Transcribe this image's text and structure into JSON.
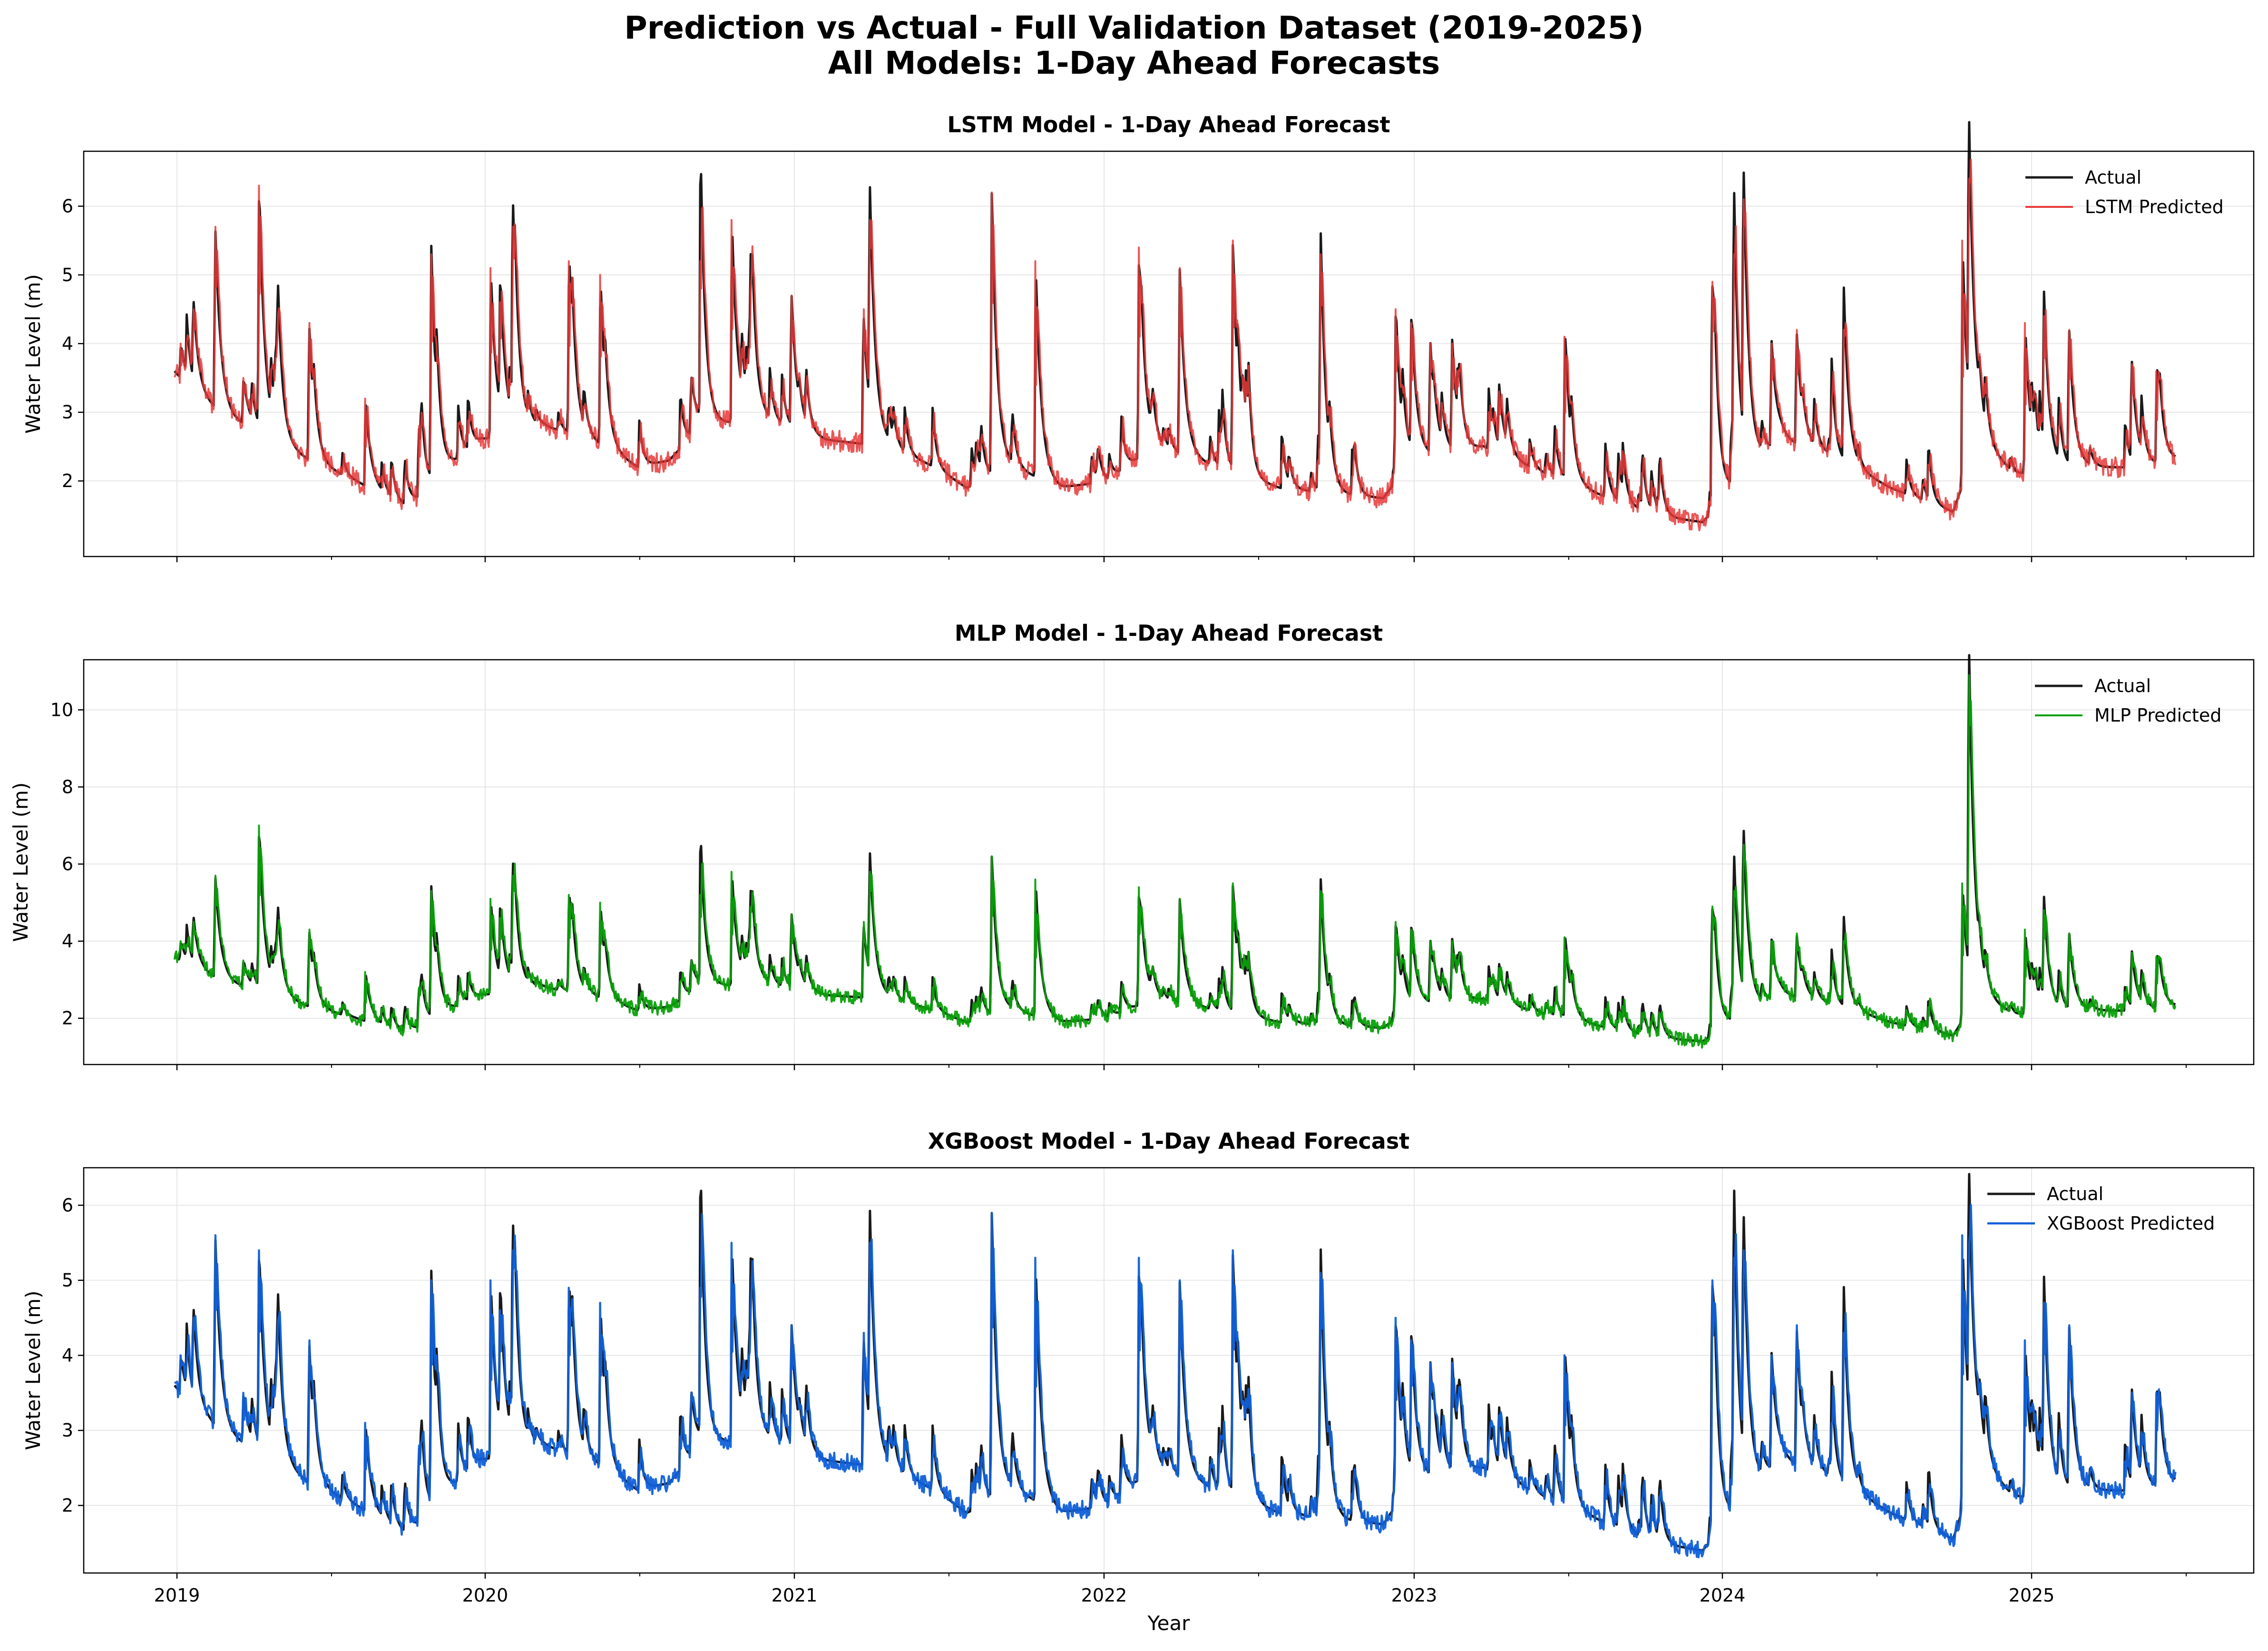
{
  "figure": {
    "title_line1": "Prediction vs Actual - Full Validation Dataset (2019-2025)",
    "title_line2": "All Models: 1-Day Ahead Forecasts",
    "xlabel": "Year"
  },
  "chart_data": [
    {
      "type": "line",
      "title": "LSTM Model - 1-Day Ahead Forecast",
      "ylabel": "Water Level (m)",
      "xlabel": "",
      "xlim": [
        2018.73,
        2025.66
      ],
      "ylim": [
        0.9,
        6.8
      ],
      "yticks": [
        2,
        3,
        4,
        5,
        6
      ],
      "xticks": [
        "2019",
        "2020",
        "2021",
        "2022",
        "2023",
        "2024",
        "2025"
      ],
      "grid": true,
      "legend_position": "top-right",
      "pred_jitter": 0.15,
      "series": [
        {
          "name": "Actual",
          "color": "#1a1a1a",
          "width": 5
        },
        {
          "name": "LSTM Predicted",
          "color": "#e83a3a",
          "width": 4,
          "opacity": 0.85
        }
      ],
      "baseline": [
        [
          2019.02,
          3.6
        ],
        [
          2019.1,
          3.2
        ],
        [
          2019.2,
          2.9
        ],
        [
          2019.3,
          2.7
        ],
        [
          2019.45,
          2.3
        ],
        [
          2019.6,
          2.0
        ],
        [
          2019.75,
          1.65
        ],
        [
          2019.82,
          1.8
        ],
        [
          2019.9,
          2.2
        ],
        [
          2020.0,
          2.6
        ],
        [
          2020.2,
          2.8
        ],
        [
          2020.35,
          2.6
        ],
        [
          2020.5,
          2.2
        ],
        [
          2020.6,
          2.3
        ],
        [
          2020.7,
          2.8
        ],
        [
          2020.9,
          2.9
        ],
        [
          2021.1,
          2.6
        ],
        [
          2021.3,
          2.5
        ],
        [
          2021.45,
          2.2
        ],
        [
          2021.55,
          1.9
        ],
        [
          2021.7,
          2.2
        ],
        [
          2021.85,
          1.9
        ],
        [
          2022.0,
          2.0
        ],
        [
          2022.15,
          2.5
        ],
        [
          2022.35,
          2.2
        ],
        [
          2022.55,
          1.9
        ],
        [
          2022.75,
          1.8
        ],
        [
          2022.88,
          1.75
        ],
        [
          2022.97,
          2.3
        ],
        [
          2023.2,
          2.5
        ],
        [
          2023.4,
          2.1
        ],
        [
          2023.6,
          1.75
        ],
        [
          2023.75,
          1.5
        ],
        [
          2023.9,
          1.4
        ],
        [
          2024.0,
          1.9
        ],
        [
          2024.15,
          2.6
        ],
        [
          2024.3,
          2.4
        ],
        [
          2024.5,
          1.9
        ],
        [
          2024.7,
          1.55
        ],
        [
          2024.78,
          2.6
        ],
        [
          2024.9,
          2.1
        ],
        [
          2025.1,
          2.2
        ],
        [
          2025.3,
          2.2
        ],
        [
          2025.41,
          2.3
        ]
      ],
      "peaks": [
        [
          2019.04,
          4.0
        ],
        [
          2019.08,
          4.5
        ],
        [
          2019.15,
          5.7
        ],
        [
          2019.24,
          3.5
        ],
        [
          2019.29,
          6.3
        ],
        [
          2019.35,
          4.0
        ],
        [
          2019.45,
          4.3
        ],
        [
          2019.63,
          3.2
        ],
        [
          2019.8,
          2.8
        ],
        [
          2019.84,
          5.3
        ],
        [
          2020.03,
          5.1
        ],
        [
          2020.06,
          4.6
        ],
        [
          2020.1,
          5.7
        ],
        [
          2020.28,
          5.2
        ],
        [
          2020.38,
          5.0
        ],
        [
          2020.67,
          3.5
        ],
        [
          2020.7,
          5.2
        ],
        [
          2020.8,
          5.8
        ],
        [
          2020.86,
          4.5
        ],
        [
          2020.99,
          4.7
        ],
        [
          2021.22,
          4.5
        ],
        [
          2021.24,
          5.8
        ],
        [
          2021.58,
          2.4
        ],
        [
          2021.63,
          6.2
        ],
        [
          2021.77,
          5.2
        ],
        [
          2022.1,
          5.4
        ],
        [
          2022.23,
          5.1
        ],
        [
          2022.4,
          5.5
        ],
        [
          2022.68,
          5.3
        ],
        [
          2022.92,
          4.5
        ],
        [
          2022.97,
          4.3
        ],
        [
          2023.03,
          4.0
        ],
        [
          2023.1,
          4.0
        ],
        [
          2023.25,
          3.3
        ],
        [
          2023.46,
          4.1
        ],
        [
          2023.93,
          4.9
        ],
        [
          2024.0,
          5.3
        ],
        [
          2024.03,
          6.1
        ],
        [
          2024.12,
          4.0
        ],
        [
          2024.2,
          4.2
        ],
        [
          2024.35,
          4.2
        ],
        [
          2024.73,
          5.5
        ],
        [
          2024.75,
          6.4
        ],
        [
          2024.93,
          4.3
        ],
        [
          2024.99,
          4.4
        ],
        [
          2025.07,
          4.2
        ],
        [
          2025.27,
          3.7
        ],
        [
          2025.35,
          3.6
        ]
      ]
    },
    {
      "type": "line",
      "title": "MLP Model - 1-Day Ahead Forecast",
      "ylabel": "Water Level (m)",
      "xlabel": "",
      "xlim": [
        2018.73,
        2025.66
      ],
      "ylim": [
        0.8,
        11.3
      ],
      "yticks": [
        2,
        4,
        6,
        8,
        10
      ],
      "xticks": [
        "2019",
        "2020",
        "2021",
        "2022",
        "2023",
        "2024",
        "2025"
      ],
      "grid": true,
      "legend_position": "top-right",
      "pred_jitter": 0.18,
      "series": [
        {
          "name": "Actual",
          "color": "#1a1a1a",
          "width": 5
        },
        {
          "name": "MLP Predicted",
          "color": "#0aa00a",
          "width": 4,
          "opacity": 0.95
        }
      ],
      "baseline": [
        [
          2019.02,
          3.6
        ],
        [
          2019.1,
          3.2
        ],
        [
          2019.2,
          2.9
        ],
        [
          2019.3,
          2.7
        ],
        [
          2019.45,
          2.3
        ],
        [
          2019.6,
          2.0
        ],
        [
          2019.75,
          1.65
        ],
        [
          2019.82,
          1.8
        ],
        [
          2019.9,
          2.2
        ],
        [
          2020.0,
          2.6
        ],
        [
          2020.2,
          2.8
        ],
        [
          2020.35,
          2.6
        ],
        [
          2020.5,
          2.2
        ],
        [
          2020.6,
          2.3
        ],
        [
          2020.7,
          2.8
        ],
        [
          2020.9,
          2.9
        ],
        [
          2021.1,
          2.6
        ],
        [
          2021.3,
          2.5
        ],
        [
          2021.45,
          2.2
        ],
        [
          2021.55,
          1.9
        ],
        [
          2021.7,
          2.2
        ],
        [
          2021.85,
          1.9
        ],
        [
          2022.0,
          2.0
        ],
        [
          2022.15,
          2.5
        ],
        [
          2022.35,
          2.2
        ],
        [
          2022.55,
          1.9
        ],
        [
          2022.75,
          1.8
        ],
        [
          2022.88,
          1.75
        ],
        [
          2022.97,
          2.3
        ],
        [
          2023.2,
          2.5
        ],
        [
          2023.4,
          2.1
        ],
        [
          2023.6,
          1.75
        ],
        [
          2023.75,
          1.5
        ],
        [
          2023.9,
          1.4
        ],
        [
          2024.0,
          1.9
        ],
        [
          2024.15,
          2.6
        ],
        [
          2024.3,
          2.4
        ],
        [
          2024.5,
          1.9
        ],
        [
          2024.7,
          1.55
        ],
        [
          2024.78,
          2.6
        ],
        [
          2024.9,
          2.1
        ],
        [
          2025.1,
          2.2
        ],
        [
          2025.3,
          2.2
        ],
        [
          2025.41,
          2.3
        ]
      ],
      "peaks": [
        [
          2019.04,
          4.0
        ],
        [
          2019.08,
          4.5
        ],
        [
          2019.15,
          5.7
        ],
        [
          2019.24,
          3.5
        ],
        [
          2019.29,
          7.0
        ],
        [
          2019.35,
          4.0
        ],
        [
          2019.45,
          4.3
        ],
        [
          2019.63,
          3.2
        ],
        [
          2019.8,
          2.8
        ],
        [
          2019.84,
          5.3
        ],
        [
          2020.03,
          5.1
        ],
        [
          2020.06,
          4.6
        ],
        [
          2020.1,
          5.7
        ],
        [
          2020.28,
          5.2
        ],
        [
          2020.38,
          5.0
        ],
        [
          2020.67,
          3.5
        ],
        [
          2020.7,
          5.2
        ],
        [
          2020.8,
          5.8
        ],
        [
          2020.86,
          4.5
        ],
        [
          2020.99,
          4.7
        ],
        [
          2021.22,
          4.5
        ],
        [
          2021.24,
          5.8
        ],
        [
          2021.58,
          2.4
        ],
        [
          2021.63,
          6.2
        ],
        [
          2021.77,
          5.6
        ],
        [
          2022.1,
          5.4
        ],
        [
          2022.23,
          5.1
        ],
        [
          2022.4,
          5.5
        ],
        [
          2022.68,
          5.3
        ],
        [
          2022.92,
          4.5
        ],
        [
          2022.97,
          4.3
        ],
        [
          2023.03,
          4.0
        ],
        [
          2023.1,
          4.0
        ],
        [
          2023.25,
          3.3
        ],
        [
          2023.46,
          4.1
        ],
        [
          2023.93,
          4.9
        ],
        [
          2024.0,
          5.3
        ],
        [
          2024.03,
          6.5
        ],
        [
          2024.12,
          4.0
        ],
        [
          2024.2,
          4.2
        ],
        [
          2024.35,
          4.0
        ],
        [
          2024.73,
          5.5
        ],
        [
          2024.75,
          10.9
        ],
        [
          2024.93,
          4.3
        ],
        [
          2024.99,
          4.8
        ],
        [
          2025.07,
          4.2
        ],
        [
          2025.27,
          3.7
        ],
        [
          2025.35,
          3.6
        ]
      ]
    },
    {
      "type": "line",
      "title": "XGBoost Model - 1-Day Ahead Forecast",
      "ylabel": "Water Level (m)",
      "xlabel": "Year",
      "xlim": [
        2018.73,
        2025.66
      ],
      "ylim": [
        1.1,
        6.5
      ],
      "yticks": [
        2,
        3,
        4,
        5,
        6
      ],
      "xticks": [
        "2019",
        "2020",
        "2021",
        "2022",
        "2023",
        "2024",
        "2025"
      ],
      "grid": true,
      "legend_position": "top-right",
      "pred_jitter": 0.12,
      "series": [
        {
          "name": "Actual",
          "color": "#1a1a1a",
          "width": 5
        },
        {
          "name": "XGBoost Predicted",
          "color": "#1060d8",
          "width": 4.5,
          "opacity": 0.95
        }
      ],
      "baseline": [
        [
          2019.02,
          3.6
        ],
        [
          2019.1,
          3.2
        ],
        [
          2019.2,
          2.9
        ],
        [
          2019.3,
          2.7
        ],
        [
          2019.45,
          2.3
        ],
        [
          2019.6,
          2.0
        ],
        [
          2019.75,
          1.65
        ],
        [
          2019.82,
          1.8
        ],
        [
          2019.9,
          2.2
        ],
        [
          2020.0,
          2.6
        ],
        [
          2020.2,
          2.8
        ],
        [
          2020.35,
          2.6
        ],
        [
          2020.5,
          2.2
        ],
        [
          2020.6,
          2.3
        ],
        [
          2020.7,
          2.8
        ],
        [
          2020.9,
          2.9
        ],
        [
          2021.1,
          2.6
        ],
        [
          2021.3,
          2.5
        ],
        [
          2021.45,
          2.2
        ],
        [
          2021.55,
          1.9
        ],
        [
          2021.7,
          2.2
        ],
        [
          2021.85,
          1.9
        ],
        [
          2022.0,
          2.0
        ],
        [
          2022.15,
          2.5
        ],
        [
          2022.35,
          2.2
        ],
        [
          2022.55,
          1.9
        ],
        [
          2022.75,
          1.8
        ],
        [
          2022.88,
          1.75
        ],
        [
          2022.97,
          2.3
        ],
        [
          2023.2,
          2.5
        ],
        [
          2023.4,
          2.1
        ],
        [
          2023.6,
          1.75
        ],
        [
          2023.75,
          1.5
        ],
        [
          2023.9,
          1.4
        ],
        [
          2024.0,
          1.9
        ],
        [
          2024.15,
          2.6
        ],
        [
          2024.3,
          2.4
        ],
        [
          2024.5,
          1.9
        ],
        [
          2024.7,
          1.55
        ],
        [
          2024.78,
          2.6
        ],
        [
          2024.9,
          2.1
        ],
        [
          2025.1,
          2.2
        ],
        [
          2025.3,
          2.2
        ],
        [
          2025.41,
          2.3
        ]
      ],
      "peaks": [
        [
          2019.04,
          4.0
        ],
        [
          2019.08,
          4.5
        ],
        [
          2019.15,
          5.6
        ],
        [
          2019.24,
          3.5
        ],
        [
          2019.29,
          5.4
        ],
        [
          2019.35,
          4.0
        ],
        [
          2019.45,
          4.2
        ],
        [
          2019.63,
          3.1
        ],
        [
          2019.8,
          2.8
        ],
        [
          2019.84,
          5.0
        ],
        [
          2020.03,
          5.0
        ],
        [
          2020.06,
          4.6
        ],
        [
          2020.1,
          5.4
        ],
        [
          2020.28,
          4.9
        ],
        [
          2020.38,
          4.7
        ],
        [
          2020.67,
          3.5
        ],
        [
          2020.7,
          4.9
        ],
        [
          2020.8,
          5.5
        ],
        [
          2020.86,
          4.5
        ],
        [
          2020.99,
          4.4
        ],
        [
          2021.22,
          4.3
        ],
        [
          2021.24,
          5.5
        ],
        [
          2021.58,
          2.4
        ],
        [
          2021.63,
          5.9
        ],
        [
          2021.77,
          5.3
        ],
        [
          2022.1,
          5.3
        ],
        [
          2022.23,
          5.0
        ],
        [
          2022.4,
          5.4
        ],
        [
          2022.68,
          5.1
        ],
        [
          2022.92,
          4.5
        ],
        [
          2022.97,
          4.2
        ],
        [
          2023.03,
          3.9
        ],
        [
          2023.1,
          3.9
        ],
        [
          2023.25,
          3.2
        ],
        [
          2023.46,
          4.0
        ],
        [
          2023.93,
          5.0
        ],
        [
          2024.0,
          5.3
        ],
        [
          2024.03,
          5.4
        ],
        [
          2024.12,
          4.0
        ],
        [
          2024.2,
          4.4
        ],
        [
          2024.35,
          4.3
        ],
        [
          2024.73,
          5.6
        ],
        [
          2024.75,
          5.5
        ],
        [
          2024.93,
          4.2
        ],
        [
          2024.99,
          4.7
        ],
        [
          2025.07,
          4.4
        ],
        [
          2025.27,
          3.5
        ],
        [
          2025.35,
          3.5
        ]
      ]
    }
  ]
}
